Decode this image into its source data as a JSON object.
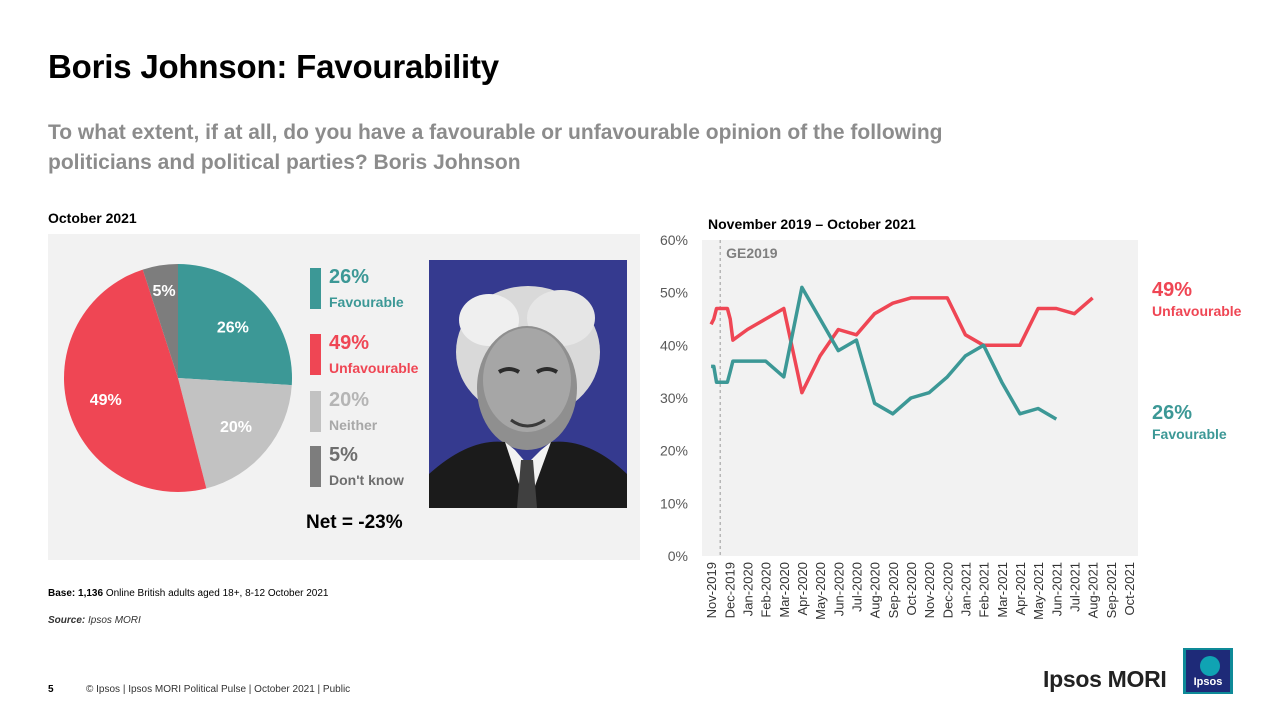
{
  "header": {
    "title": "Boris Johnson: Favourability",
    "question": "To what extent, if at all, do you have a favourable or unfavourable opinion of the following politicians and political parties? Boris Johnson"
  },
  "colors": {
    "favourable": "#3c9896",
    "unfavourable": "#ef4654",
    "neither": "#c2c2c2",
    "dont_know": "#7d7d7d",
    "panel_bg": "#f2f2f2",
    "photo_bg": "#353a8f"
  },
  "left": {
    "label": "October 2021",
    "net": "Net = -23%",
    "legend": [
      {
        "pct": "26%",
        "label": "Favourable"
      },
      {
        "pct": "49%",
        "label": "Unfavourable"
      },
      {
        "pct": "20%",
        "label": "Neither"
      },
      {
        "pct": "5%",
        "label": "Don't know"
      }
    ]
  },
  "right": {
    "label": "November 2019 – October 2021"
  },
  "chart_data": [
    {
      "type": "pie",
      "title": "October 2021",
      "slices": [
        {
          "name": "Favourable",
          "value": 26,
          "label": "26%"
        },
        {
          "name": "Neither",
          "value": 20,
          "label": "20%"
        },
        {
          "name": "Unfavourable",
          "value": 49,
          "label": "49%"
        },
        {
          "name": "Don't know",
          "value": 5,
          "label": "5%"
        }
      ]
    },
    {
      "type": "line",
      "title": "November 2019 – October 2021",
      "categories": [
        "Nov-2019",
        "Dec-2019",
        "Jan-2020",
        "Feb-2020",
        "Mar-2020",
        "Apr-2020",
        "May-2020",
        "Jun-2020",
        "Jul-2020",
        "Aug-2020",
        "Sep-2020",
        "Oct-2020",
        "Nov-2020",
        "Dec-2020",
        "Jan-2021",
        "Feb-2021",
        "Mar-2021",
        "Apr-2021",
        "May-2021",
        "Jun-2021",
        "Jul-2021",
        "Aug-2021",
        "Sep-2021",
        "Oct-2021"
      ],
      "x": [
        0,
        0.15,
        0.3,
        0.45,
        0.6,
        0.75,
        0.9,
        1.05,
        1.2,
        2,
        3,
        4,
        5,
        6,
        7,
        8,
        9,
        10,
        11,
        12,
        13,
        14,
        15,
        16,
        17,
        18,
        19,
        20,
        21,
        22,
        23
      ],
      "series": [
        {
          "name": "Unfavourable",
          "values": [
            44,
            45,
            47,
            47,
            47,
            47,
            47,
            45,
            41,
            43,
            45,
            47,
            31,
            38,
            43,
            42,
            46,
            48,
            49,
            49,
            49,
            42,
            40,
            40,
            40,
            47,
            47,
            46,
            49,
            null,
            null
          ],
          "end_label": "49%",
          "end_text": "Unfavourable"
        },
        {
          "name": "Favourable",
          "values": [
            36,
            36,
            33,
            33,
            33,
            33,
            33,
            35,
            37,
            37,
            37,
            34,
            51,
            45,
            39,
            41,
            29,
            27,
            30,
            31,
            34,
            38,
            40,
            33,
            27,
            28,
            26,
            null,
            null,
            null,
            null
          ],
          "end_label": "26%",
          "end_text": "Favourable"
        }
      ],
      "annotation": "GE2019",
      "yticks": [
        "0%",
        "10%",
        "20%",
        "30%",
        "40%",
        "50%",
        "60%"
      ],
      "ylim": [
        0,
        60
      ]
    }
  ],
  "footer": {
    "base_label": "Base:",
    "base_count": "1,136",
    "base_text": "Online British adults aged 18+,  8-12 October 2021",
    "source_label": "Source:",
    "source_text": "Ipsos MORI",
    "page_number": "5",
    "copyright": "© Ipsos | Ipsos MORI  Political Pulse | October 2021 | Public",
    "logo_text": "Ipsos MORI",
    "logo_box_text": "Ipsos"
  }
}
